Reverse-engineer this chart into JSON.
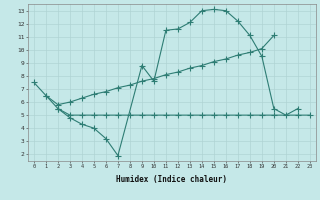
{
  "xlabel": "Humidex (Indice chaleur)",
  "xlim": [
    -0.5,
    23.5
  ],
  "ylim": [
    1.5,
    13.5
  ],
  "bg_color": "#c5e8e8",
  "line_color": "#2e7d74",
  "grid_color": "#b0d4d4",
  "line1_x": [
    0,
    1,
    2,
    3,
    4,
    5,
    6,
    7,
    9,
    10,
    11,
    12,
    13,
    14,
    15,
    16,
    17,
    18,
    19,
    20,
    21,
    22
  ],
  "line1_y": [
    7.5,
    6.5,
    5.5,
    4.8,
    4.3,
    4.0,
    3.2,
    1.9,
    8.8,
    7.6,
    11.5,
    11.6,
    12.1,
    13.0,
    13.1,
    13.0,
    12.2,
    11.1,
    9.5,
    5.5,
    5.0,
    5.5
  ],
  "line2_x": [
    1,
    2,
    3,
    4,
    5,
    6,
    7,
    8,
    9,
    10,
    11,
    12,
    13,
    14,
    15,
    16,
    17,
    18,
    19,
    20
  ],
  "line2_y": [
    6.5,
    5.8,
    6.0,
    6.3,
    6.6,
    6.8,
    7.1,
    7.3,
    7.6,
    7.8,
    8.1,
    8.3,
    8.6,
    8.8,
    9.1,
    9.3,
    9.6,
    9.8,
    10.1,
    11.1
  ],
  "line3_x": [
    2,
    3,
    4,
    5,
    6,
    7,
    8,
    9,
    10,
    11,
    12,
    13,
    14,
    15,
    16,
    17,
    18,
    19,
    20,
    22,
    23
  ],
  "line3_y": [
    5.5,
    5.0,
    5.0,
    5.0,
    5.0,
    5.0,
    5.0,
    5.0,
    5.0,
    5.0,
    5.0,
    5.0,
    5.0,
    5.0,
    5.0,
    5.0,
    5.0,
    5.0,
    5.0,
    5.0,
    5.0
  ]
}
